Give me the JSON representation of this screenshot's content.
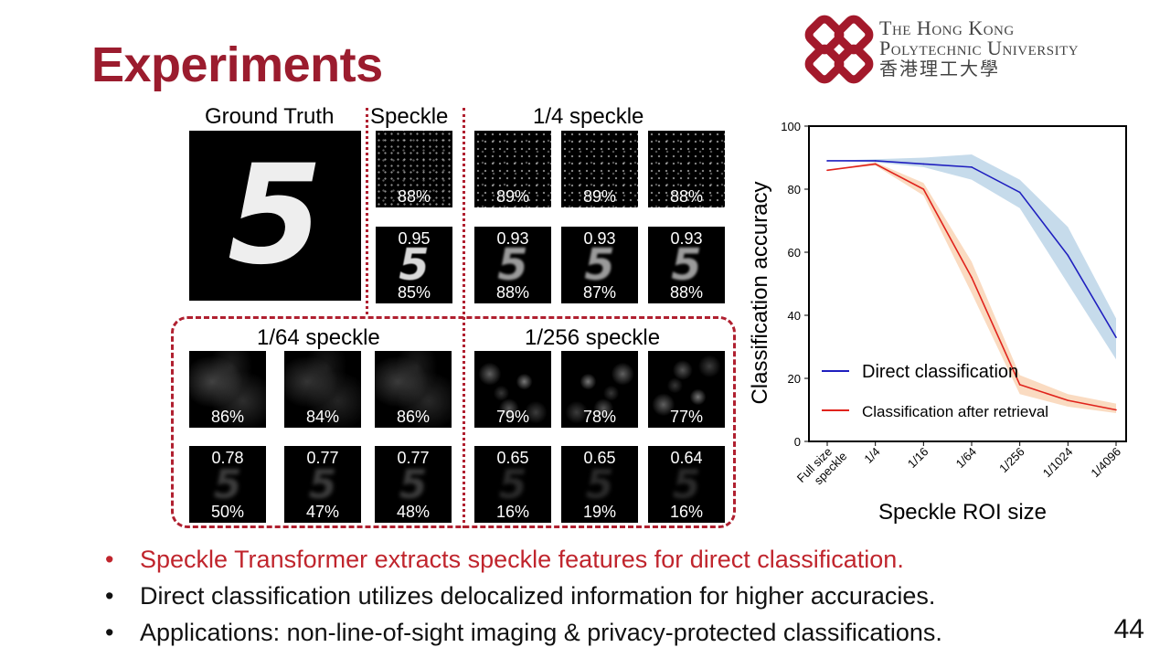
{
  "title": "Experiments",
  "university": {
    "line1": "The Hong Kong",
    "line2": "Polytechnic University",
    "line3": "香港理工大學"
  },
  "figure": {
    "headers": {
      "ground_truth": "Ground Truth",
      "speckle": "Speckle",
      "quarter": "1/4 speckle",
      "sixty_fourth": "1/64 speckle",
      "two_fifty_sixth": "1/256 speckle"
    },
    "digit": "5",
    "speckle": {
      "direct": "88%",
      "corr": "0.95",
      "retrieval": "85%"
    },
    "quarter": {
      "direct": [
        "89%",
        "89%",
        "88%"
      ],
      "corr": [
        "0.93",
        "0.93",
        "0.93"
      ],
      "retrieval": [
        "88%",
        "87%",
        "88%"
      ]
    },
    "sixty_fourth": {
      "direct": [
        "86%",
        "84%",
        "86%"
      ],
      "corr": [
        "0.78",
        "0.77",
        "0.77"
      ],
      "retrieval": [
        "50%",
        "47%",
        "48%"
      ]
    },
    "two_fifty_sixth": {
      "direct": [
        "79%",
        "78%",
        "77%"
      ],
      "corr": [
        "0.65",
        "0.65",
        "0.64"
      ],
      "retrieval": [
        "16%",
        "19%",
        "16%"
      ]
    }
  },
  "chart_data": {
    "type": "line",
    "categories": [
      "Full size speckle",
      "1/4",
      "1/16",
      "1/64",
      "1/256",
      "1/1024",
      "1/4096"
    ],
    "xlabel": "Speckle ROI size",
    "ylabel": "Classification accuracy",
    "ylim": [
      0,
      100
    ],
    "yticks": [
      0,
      20,
      40,
      60,
      80,
      100
    ],
    "legend_position": "lower-left",
    "series": [
      {
        "name": "Direct classification",
        "color": "#1f1fbf",
        "band_color": "#a8c8e0",
        "values": [
          89,
          89,
          88,
          87,
          79,
          59,
          33
        ],
        "lower": [
          89,
          88.5,
          87,
          83,
          74,
          50,
          26
        ],
        "upper": [
          89,
          89.5,
          90,
          91,
          83,
          68,
          39
        ]
      },
      {
        "name": "Classification after retrieval",
        "color": "#e0231c",
        "band_color": "#f7c8a0",
        "values": [
          86,
          88,
          80,
          52,
          18,
          13,
          10
        ],
        "lower": [
          86,
          87.5,
          78,
          47,
          15,
          11,
          9
        ],
        "upper": [
          86,
          88.5,
          82,
          57,
          21,
          15,
          12
        ]
      }
    ]
  },
  "bullets": [
    "Speckle Transformer extracts speckle features for direct classification.",
    "Direct classification utilizes delocalized information for higher accuracies.",
    "Applications: non-line-of-sight imaging & privacy-protected classifications."
  ],
  "bullet_mark": "•",
  "page_number": "44"
}
